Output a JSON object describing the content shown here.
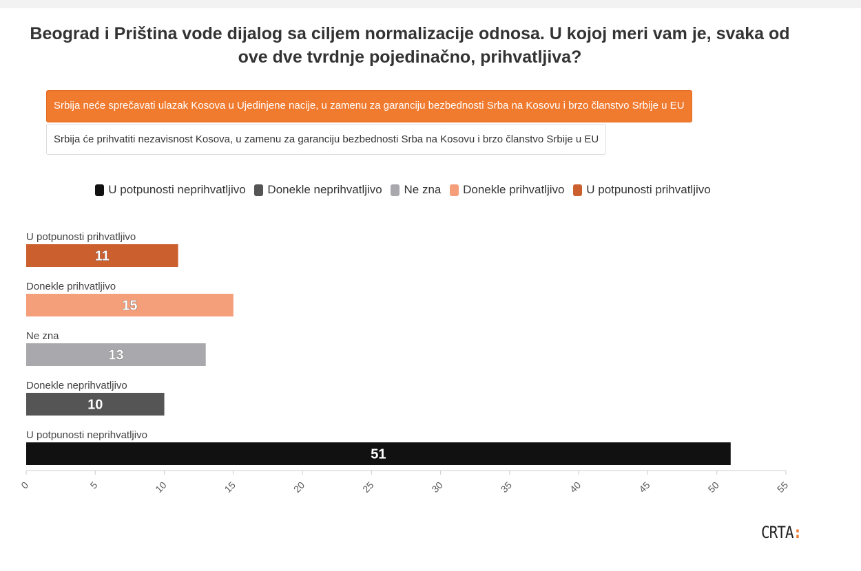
{
  "title": "Beograd i Priština vode dijalog sa ciljem normalizacije odnosa. U kojoj meri vam je, svaka od ove dve tvrdnje pojedinačno, prihvatljiva?",
  "tabs": [
    {
      "label": "Srbija neće sprečavati ulazak Kosova u Ujedinjene nacije, u zamenu za garanciju bezbednosti Srba na Kosovu i brzo članstvo Srbije u EU",
      "active": true
    },
    {
      "label": "Srbija će prihvatiti nezavisnost Kosova, u zamenu za garanciju bezbednosti Srba na Kosovu i brzo članstvo Srbije u EU",
      "active": false
    }
  ],
  "legend": [
    {
      "label": "U potpunosti neprihvatljivo",
      "color": "#111111"
    },
    {
      "label": "Donekle neprihvatljivo",
      "color": "#555555"
    },
    {
      "label": "Ne zna",
      "color": "#a9a9ad"
    },
    {
      "label": "Donekle prihvatljivo",
      "color": "#f59e7a"
    },
    {
      "label": "U potpunosti prihvatljivo",
      "color": "#cc5f2e"
    }
  ],
  "chart_data": {
    "type": "bar",
    "orientation": "horizontal",
    "title": "Beograd i Priština vode dijalog sa ciljem normalizacije odnosa. U kojoj meri vam je, svaka od ove dve tvrdnje pojedinačno, prihvatljiva?",
    "categories": [
      "U potpunosti prihvatljivo",
      "Donekle prihvatljivo",
      "Ne zna",
      "Donekle neprihvatljivo",
      "U potpunosti neprihvatljivo"
    ],
    "values": [
      11,
      15,
      13,
      10,
      51
    ],
    "colors": [
      "#cc5f2e",
      "#f59e7a",
      "#a9a9ad",
      "#555555",
      "#111111"
    ],
    "xlim": [
      0,
      55
    ],
    "xticks": [
      0,
      5,
      10,
      15,
      20,
      25,
      30,
      35,
      40,
      45,
      50,
      55
    ],
    "xlabel": "",
    "ylabel": "",
    "grid": false,
    "legend_position": "top"
  },
  "brand": {
    "text": "CRTA",
    "colon": ":"
  }
}
